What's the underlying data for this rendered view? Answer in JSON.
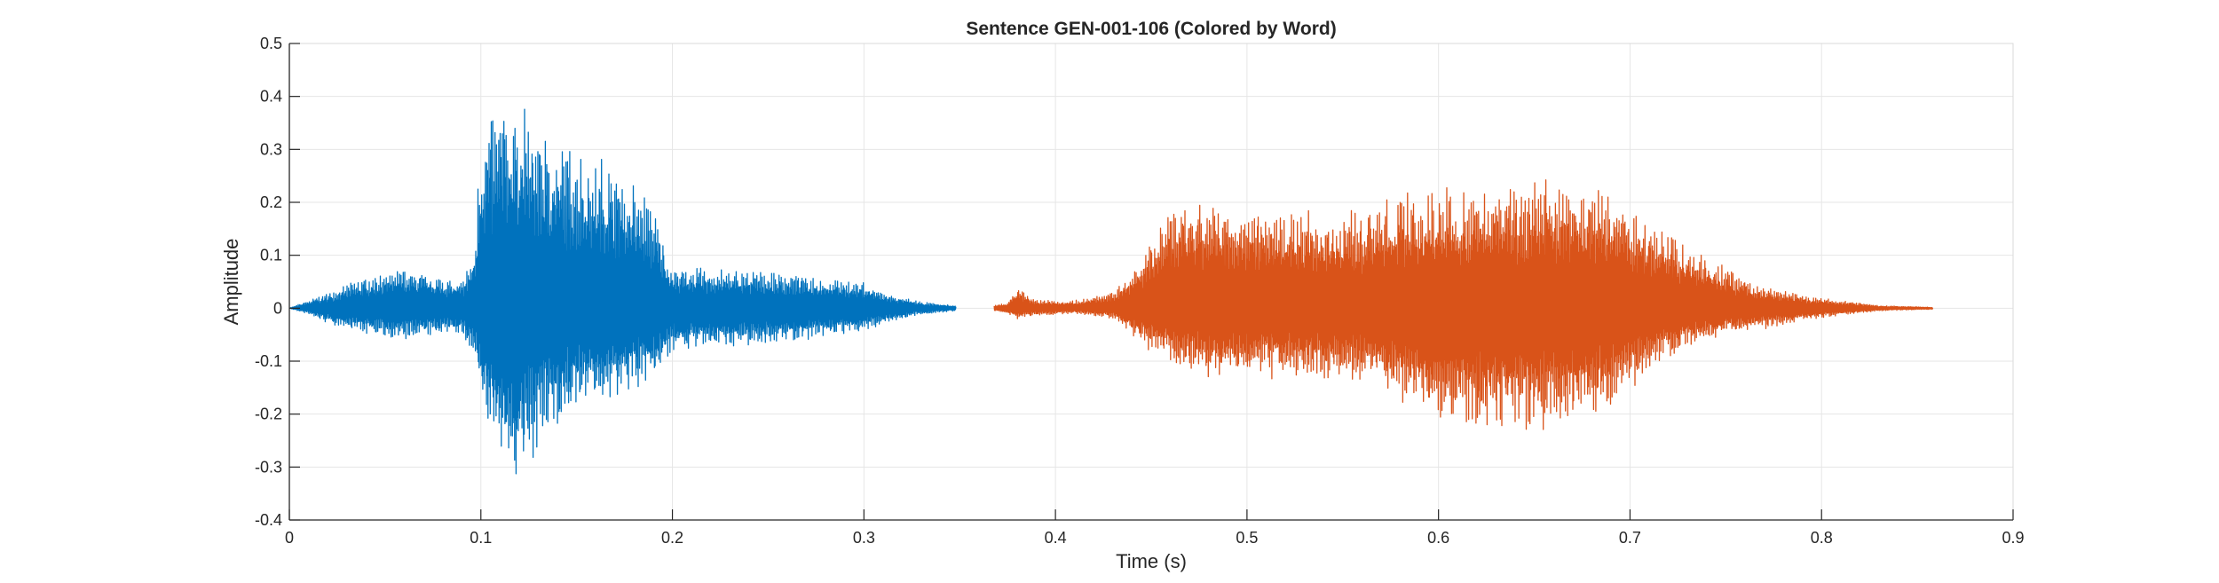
{
  "chart_data": {
    "type": "line",
    "title": "Sentence GEN-001-106 (Colored by Word)",
    "xlabel": "Time (s)",
    "ylabel": "Amplitude",
    "xlim": [
      0,
      0.9
    ],
    "ylim": [
      -0.4,
      0.5
    ],
    "xticks": [
      0,
      0.1,
      0.2,
      0.3,
      0.4,
      0.5,
      0.6,
      0.7,
      0.8,
      0.9
    ],
    "xtick_labels": [
      "0",
      "0.1",
      "0.2",
      "0.3",
      "0.4",
      "0.5",
      "0.6",
      "0.7",
      "0.8",
      "0.9"
    ],
    "yticks": [
      -0.4,
      -0.3,
      -0.2,
      -0.1,
      0,
      0.1,
      0.2,
      0.3,
      0.4,
      0.5
    ],
    "ytick_labels": [
      "-0.4",
      "-0.3",
      "-0.2",
      "-0.1",
      "0",
      "0.1",
      "0.2",
      "0.3",
      "0.4",
      "0.5"
    ],
    "grid": true,
    "series": [
      {
        "color": "#0072BD",
        "envelope": [
          [
            0.0,
            0.0,
            0.0
          ],
          [
            0.01,
            0.015,
            -0.012
          ],
          [
            0.02,
            0.03,
            -0.03
          ],
          [
            0.04,
            0.06,
            -0.05
          ],
          [
            0.06,
            0.075,
            -0.06
          ],
          [
            0.08,
            0.06,
            -0.05
          ],
          [
            0.09,
            0.05,
            -0.05
          ],
          [
            0.097,
            0.12,
            -0.1
          ],
          [
            0.1,
            0.36,
            -0.2
          ],
          [
            0.11,
            0.4,
            -0.3
          ],
          [
            0.118,
            0.42,
            -0.36
          ],
          [
            0.13,
            0.35,
            -0.26
          ],
          [
            0.15,
            0.3,
            -0.2
          ],
          [
            0.17,
            0.28,
            -0.18
          ],
          [
            0.19,
            0.2,
            -0.14
          ],
          [
            0.2,
            0.08,
            -0.08
          ],
          [
            0.22,
            0.075,
            -0.075
          ],
          [
            0.25,
            0.07,
            -0.07
          ],
          [
            0.28,
            0.06,
            -0.055
          ],
          [
            0.3,
            0.05,
            -0.045
          ],
          [
            0.31,
            0.03,
            -0.03
          ],
          [
            0.33,
            0.012,
            -0.012
          ],
          [
            0.348,
            0.005,
            -0.005
          ]
        ]
      },
      {
        "color": "#D95319",
        "envelope": [
          [
            0.368,
            0.006,
            -0.006
          ],
          [
            0.375,
            0.01,
            -0.01
          ],
          [
            0.38,
            0.04,
            -0.02
          ],
          [
            0.39,
            0.015,
            -0.015
          ],
          [
            0.41,
            0.015,
            -0.01
          ],
          [
            0.43,
            0.03,
            -0.02
          ],
          [
            0.445,
            0.1,
            -0.07
          ],
          [
            0.46,
            0.2,
            -0.11
          ],
          [
            0.48,
            0.2,
            -0.13
          ],
          [
            0.5,
            0.2,
            -0.14
          ],
          [
            0.52,
            0.19,
            -0.13
          ],
          [
            0.56,
            0.19,
            -0.14
          ],
          [
            0.58,
            0.22,
            -0.18
          ],
          [
            0.6,
            0.23,
            -0.22
          ],
          [
            0.63,
            0.24,
            -0.24
          ],
          [
            0.66,
            0.25,
            -0.23
          ],
          [
            0.69,
            0.22,
            -0.2
          ],
          [
            0.71,
            0.17,
            -0.12
          ],
          [
            0.73,
            0.12,
            -0.08
          ],
          [
            0.75,
            0.08,
            -0.05
          ],
          [
            0.77,
            0.04,
            -0.04
          ],
          [
            0.79,
            0.025,
            -0.025
          ],
          [
            0.81,
            0.015,
            -0.015
          ],
          [
            0.83,
            0.005,
            -0.005
          ],
          [
            0.858,
            0.002,
            -0.002
          ]
        ]
      }
    ]
  }
}
